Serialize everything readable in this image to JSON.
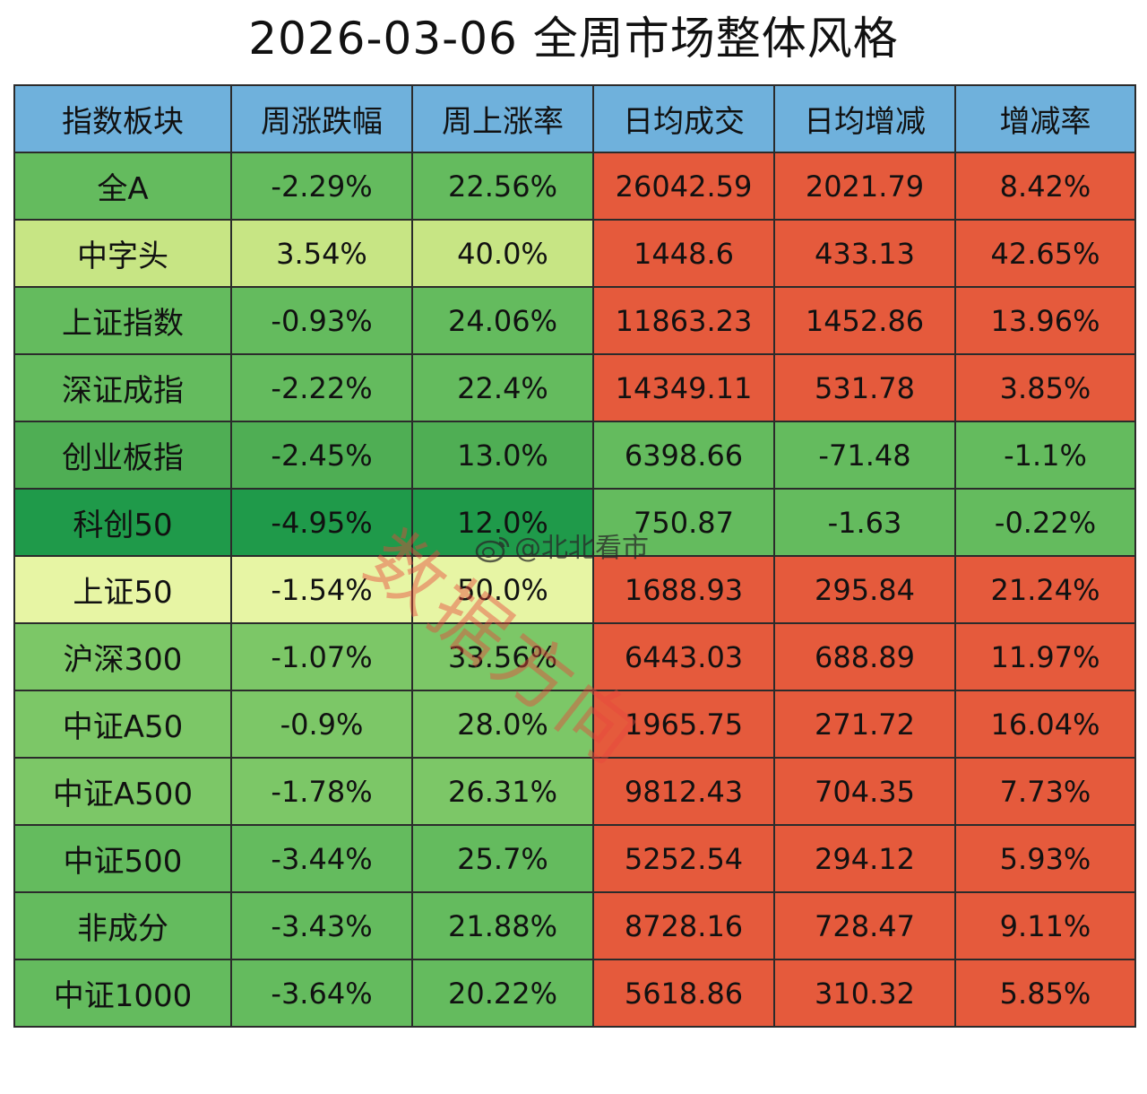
{
  "title": "2026-03-06 全周市场整体风格",
  "watermark": "数据方向",
  "weibo_handle": "@北北看市",
  "colors": {
    "header": "#6fb1dc",
    "green_deep": "#1f9a4a",
    "green_mid": "#4fae54",
    "green": "#64bb5e",
    "green_light": "#7cc767",
    "lime": "#c7e584",
    "pale_yellow": "#e7f5a4",
    "red": "#e55a3c",
    "border": "#2b2b2b"
  },
  "chart_data": {
    "type": "table",
    "title": "2026-03-06 全周市场整体风格",
    "columns": [
      "指数板块",
      "周涨跌幅",
      "周上涨率",
      "日均成交",
      "日均增减",
      "增减率"
    ],
    "rows": [
      {
        "cells": [
          "全A",
          "-2.29%",
          "22.56%",
          "26042.59",
          "2021.79",
          "8.42%"
        ],
        "fills": [
          "green",
          "green",
          "green",
          "red",
          "red",
          "red"
        ]
      },
      {
        "cells": [
          "中字头",
          "3.54%",
          "40.0%",
          "1448.6",
          "433.13",
          "42.65%"
        ],
        "fills": [
          "lime",
          "lime",
          "lime",
          "red",
          "red",
          "red"
        ]
      },
      {
        "cells": [
          "上证指数",
          "-0.93%",
          "24.06%",
          "11863.23",
          "1452.86",
          "13.96%"
        ],
        "fills": [
          "green",
          "green",
          "green",
          "red",
          "red",
          "red"
        ]
      },
      {
        "cells": [
          "深证成指",
          "-2.22%",
          "22.4%",
          "14349.11",
          "531.78",
          "3.85%"
        ],
        "fills": [
          "green",
          "green",
          "green",
          "red",
          "red",
          "red"
        ]
      },
      {
        "cells": [
          "创业板指",
          "-2.45%",
          "13.0%",
          "6398.66",
          "-71.48",
          "-1.1%"
        ],
        "fills": [
          "green_mid",
          "green_mid",
          "green_mid",
          "green",
          "green",
          "green"
        ]
      },
      {
        "cells": [
          "科创50",
          "-4.95%",
          "12.0%",
          "750.87",
          "-1.63",
          "-0.22%"
        ],
        "fills": [
          "green_deep",
          "green_deep",
          "green_deep",
          "green",
          "green",
          "green"
        ]
      },
      {
        "cells": [
          "上证50",
          "-1.54%",
          "50.0%",
          "1688.93",
          "295.84",
          "21.24%"
        ],
        "fills": [
          "pale_yellow",
          "pale_yellow",
          "pale_yellow",
          "red",
          "red",
          "red"
        ]
      },
      {
        "cells": [
          "沪深300",
          "-1.07%",
          "33.56%",
          "6443.03",
          "688.89",
          "11.97%"
        ],
        "fills": [
          "green_light",
          "green_light",
          "green_light",
          "red",
          "red",
          "red"
        ]
      },
      {
        "cells": [
          "中证A50",
          "-0.9%",
          "28.0%",
          "1965.75",
          "271.72",
          "16.04%"
        ],
        "fills": [
          "green_light",
          "green_light",
          "green_light",
          "red",
          "red",
          "red"
        ]
      },
      {
        "cells": [
          "中证A500",
          "-1.78%",
          "26.31%",
          "9812.43",
          "704.35",
          "7.73%"
        ],
        "fills": [
          "green_light",
          "green_light",
          "green_light",
          "red",
          "red",
          "red"
        ]
      },
      {
        "cells": [
          "中证500",
          "-3.44%",
          "25.7%",
          "5252.54",
          "294.12",
          "5.93%"
        ],
        "fills": [
          "green",
          "green",
          "green",
          "red",
          "red",
          "red"
        ]
      },
      {
        "cells": [
          "非成分",
          "-3.43%",
          "21.88%",
          "8728.16",
          "728.47",
          "9.11%"
        ],
        "fills": [
          "green",
          "green",
          "green",
          "red",
          "red",
          "red"
        ]
      },
      {
        "cells": [
          "中证1000",
          "-3.64%",
          "20.22%",
          "5618.86",
          "310.32",
          "5.85%"
        ],
        "fills": [
          "green",
          "green",
          "green",
          "red",
          "red",
          "red"
        ]
      }
    ]
  }
}
